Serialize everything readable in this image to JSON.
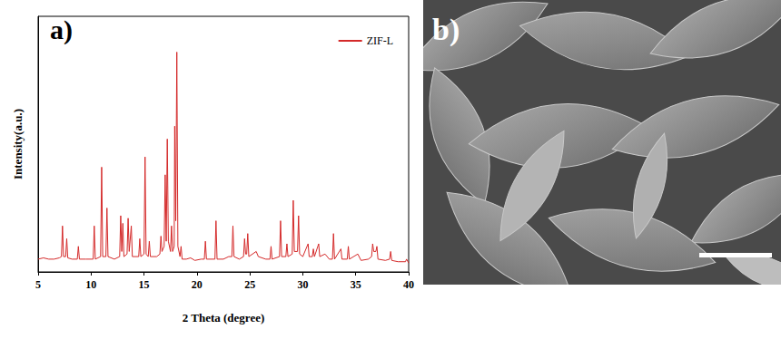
{
  "chart_data": {
    "type": "line",
    "title": "a)",
    "xlabel": "2 Theta (degree)",
    "ylabel": "Intensity(a.u.)",
    "x": [
      5.0,
      5.5,
      6.0,
      6.5,
      7.0,
      7.2,
      7.3,
      7.4,
      7.6,
      7.7,
      7.8,
      8.2,
      8.7,
      8.8,
      8.9,
      9.5,
      10.2,
      10.3,
      10.4,
      10.9,
      11.0,
      11.1,
      11.4,
      11.5,
      11.6,
      12.2,
      12.7,
      12.8,
      12.9,
      13.0,
      13.1,
      13.4,
      13.5,
      13.6,
      13.8,
      13.9,
      14.5,
      14.6,
      14.7,
      15.0,
      15.1,
      15.2,
      15.4,
      15.5,
      15.6,
      16.2,
      16.5,
      16.6,
      16.7,
      16.9,
      17.0,
      17.1,
      17.2,
      17.3,
      17.5,
      17.6,
      17.7,
      17.85,
      17.9,
      18.0,
      18.1,
      18.2,
      18.4,
      18.5,
      18.6,
      19.0,
      19.4,
      19.8,
      20.4,
      20.7,
      20.8,
      20.9,
      21.7,
      21.8,
      21.9,
      22.5,
      23.0,
      23.3,
      23.4,
      23.5,
      24.0,
      24.4,
      24.5,
      24.6,
      24.7,
      24.8,
      24.9,
      25.6,
      25.8,
      26.5,
      26.9,
      27.0,
      27.1,
      27.8,
      27.9,
      28.0,
      28.4,
      28.5,
      28.6,
      29.0,
      29.1,
      29.2,
      29.5,
      29.6,
      29.7,
      30.0,
      30.5,
      30.6,
      30.9,
      31.0,
      31.1,
      31.5,
      31.6,
      32.1,
      32.5,
      32.8,
      32.9,
      33.0,
      33.6,
      33.7,
      34.2,
      34.3,
      34.4,
      35.2,
      35.5,
      36.2,
      36.5,
      36.6,
      36.7,
      36.9,
      37.0,
      37.1,
      37.8,
      38.2,
      38.3,
      38.4,
      39.0,
      39.7,
      39.8,
      40.0
    ],
    "series": [
      {
        "name": "ZIF-L",
        "color": "#d42a2a",
        "values": [
          5,
          5.5,
          5,
          5,
          5.5,
          6,
          18,
          6,
          6,
          13,
          5.5,
          5,
          5,
          10,
          5,
          5,
          5,
          18,
          5,
          6,
          41,
          6,
          6,
          25,
          6,
          5,
          6,
          22,
          8,
          19,
          6,
          7,
          21,
          8,
          18,
          6,
          6,
          13,
          6,
          7,
          45,
          7,
          6,
          12,
          6,
          6,
          7,
          14,
          8,
          10,
          38,
          12,
          52,
          12,
          8,
          18,
          8,
          10,
          57,
          20,
          86,
          10,
          6,
          10,
          5,
          5,
          5.5,
          4.5,
          5,
          5,
          12,
          5,
          5,
          20,
          5,
          5,
          6,
          6,
          18,
          6,
          5,
          6,
          13,
          7,
          7,
          15,
          6,
          8,
          6,
          5,
          5,
          10,
          5,
          6,
          20,
          6,
          6,
          11,
          6,
          7,
          28,
          8,
          8,
          22,
          7,
          6,
          11,
          6,
          6,
          9,
          6,
          11,
          6,
          7,
          5,
          5,
          15,
          5,
          9,
          5,
          5,
          10,
          5,
          7,
          4.5,
          5,
          6,
          11,
          8,
          8,
          10,
          5,
          4.5,
          5,
          8,
          4.5,
          4,
          4,
          5,
          3.5
        ]
      }
    ],
    "xlim": [
      5,
      40
    ],
    "xticks": [
      5,
      10,
      15,
      20,
      25,
      30,
      35,
      40
    ],
    "ylim": [
      0,
      100
    ],
    "tick_labels": "x",
    "grid": false,
    "legend": "upper right"
  },
  "panel_b": {
    "label": "b)"
  }
}
